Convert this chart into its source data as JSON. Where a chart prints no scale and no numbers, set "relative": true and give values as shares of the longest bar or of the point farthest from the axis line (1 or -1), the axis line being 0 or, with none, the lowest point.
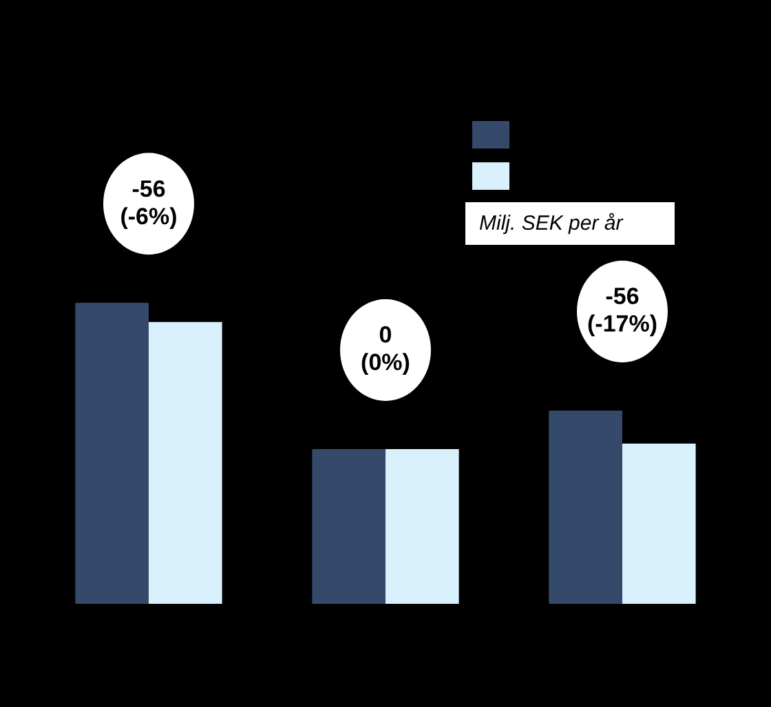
{
  "chart_data": {
    "type": "bar",
    "relative": true,
    "categories": [
      null,
      null,
      null
    ],
    "series": [
      {
        "color": "#354a6b",
        "values": [
          1,
          0.514,
          0.642
        ]
      },
      {
        "color": "#d9f0fd",
        "values": [
          0.936,
          0.514,
          0.532
        ]
      }
    ],
    "annotations": [
      "-56\n(-6%)",
      "0\n(0%)",
      "-56\n(-17%)",
      "Milj. SEK per år"
    ]
  }
}
